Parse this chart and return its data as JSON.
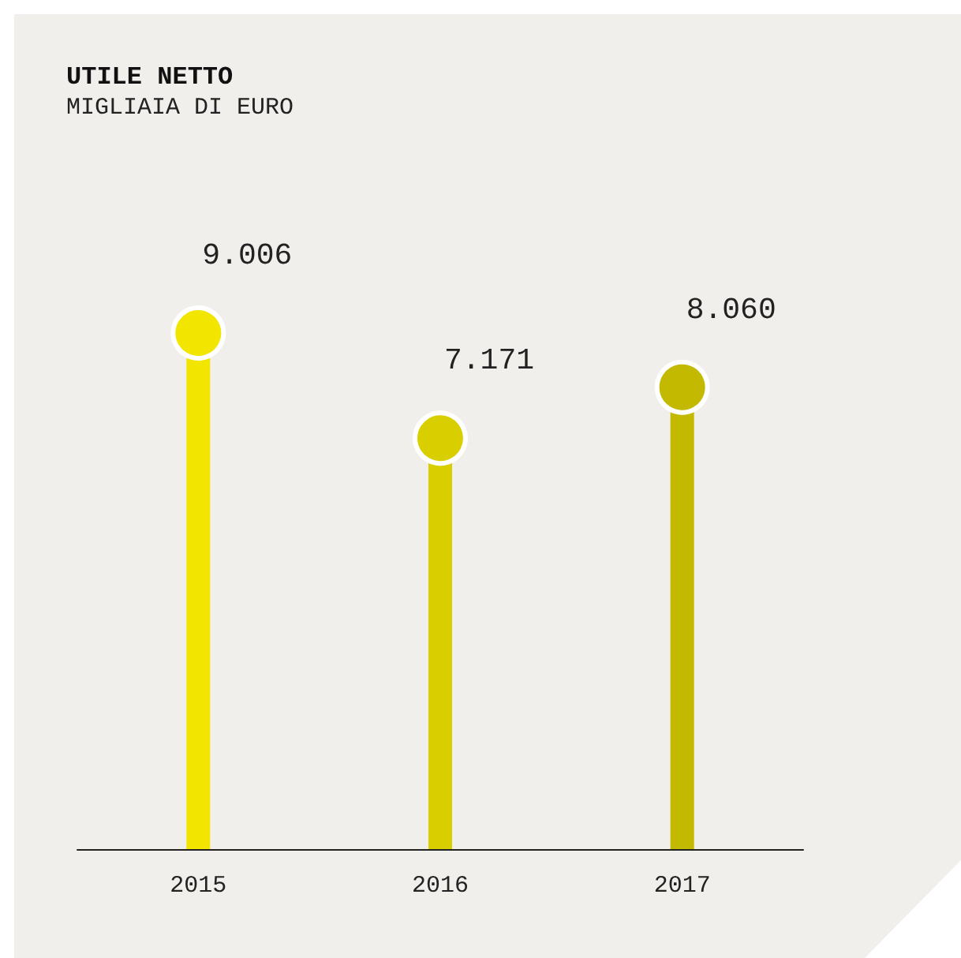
{
  "chart_data": {
    "type": "lollipop",
    "title": "UTILE NETTO",
    "subtitle": "MIGLIAIA DI EURO",
    "categories": [
      "2015",
      "2016",
      "2017"
    ],
    "values": [
      9006,
      7171,
      8060
    ],
    "colors": [
      "#f2e500",
      "#d9cf00",
      "#c2b900"
    ],
    "value_labels": [
      "9.006",
      "7.171",
      "8.060"
    ]
  }
}
